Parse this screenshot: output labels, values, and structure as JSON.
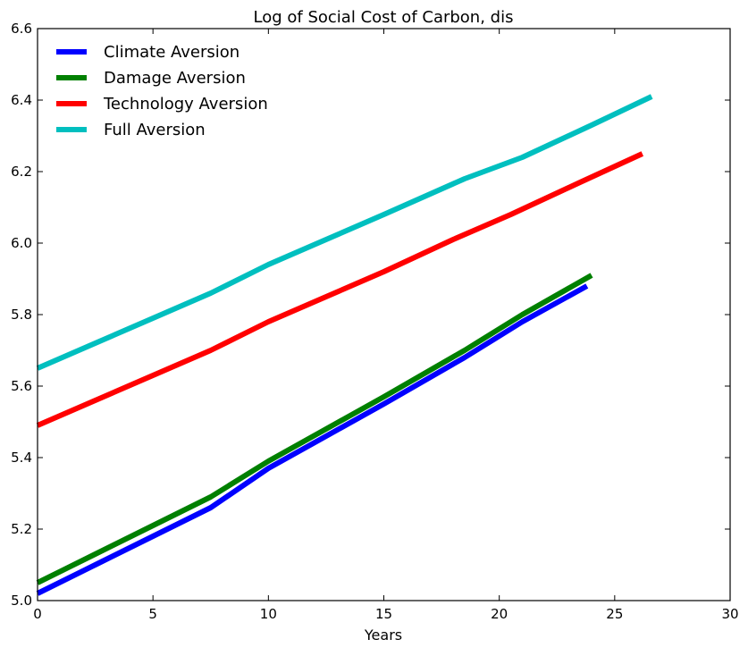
{
  "chart_data": {
    "type": "line",
    "title": "Log of Social Cost of Carbon, dis",
    "xlabel": "Years",
    "ylabel": "",
    "xlim": [
      0,
      30
    ],
    "ylim": [
      5.0,
      6.6
    ],
    "xticks": [
      0,
      5,
      10,
      15,
      20,
      25,
      30
    ],
    "yticks": [
      5.0,
      5.2,
      5.4,
      5.6,
      5.8,
      6.0,
      6.2,
      6.4,
      6.6
    ],
    "xtick_labels": [
      "0",
      "5",
      "10",
      "15",
      "20",
      "25",
      "30"
    ],
    "ytick_labels": [
      "5.0",
      "5.2",
      "5.4",
      "5.6",
      "5.8",
      "6.0",
      "6.2",
      "6.4",
      "6.6"
    ],
    "grid": false,
    "legend_position": "top-left",
    "series": [
      {
        "name": "Climate Aversion",
        "color": "#0000ff",
        "x": [
          0,
          2.5,
          5,
          7.5,
          10,
          12.5,
          15,
          18.5,
          21,
          23.8
        ],
        "y": [
          5.02,
          5.1,
          5.18,
          5.26,
          5.37,
          5.46,
          5.55,
          5.68,
          5.78,
          5.88
        ]
      },
      {
        "name": "Damage Aversion",
        "color": "#008000",
        "x": [
          0,
          2.5,
          5,
          7.5,
          10,
          12.5,
          15,
          18.5,
          21,
          24.0
        ],
        "y": [
          5.05,
          5.13,
          5.21,
          5.29,
          5.39,
          5.48,
          5.57,
          5.7,
          5.8,
          5.91
        ]
      },
      {
        "name": "Technology Aversion",
        "color": "#ff0000",
        "x": [
          0,
          2.5,
          5,
          7.5,
          10,
          12.5,
          15,
          18,
          20.5,
          23.5,
          26.2
        ],
        "y": [
          5.49,
          5.56,
          5.63,
          5.7,
          5.78,
          5.85,
          5.92,
          6.01,
          6.08,
          6.17,
          6.25
        ]
      },
      {
        "name": "Full Aversion",
        "color": "#00bfbf",
        "x": [
          0,
          2.5,
          5,
          7.5,
          10,
          12.5,
          15,
          18.5,
          21,
          24,
          26.6
        ],
        "y": [
          5.65,
          5.72,
          5.79,
          5.86,
          5.94,
          6.01,
          6.08,
          6.18,
          6.24,
          6.33,
          6.41
        ]
      }
    ]
  }
}
